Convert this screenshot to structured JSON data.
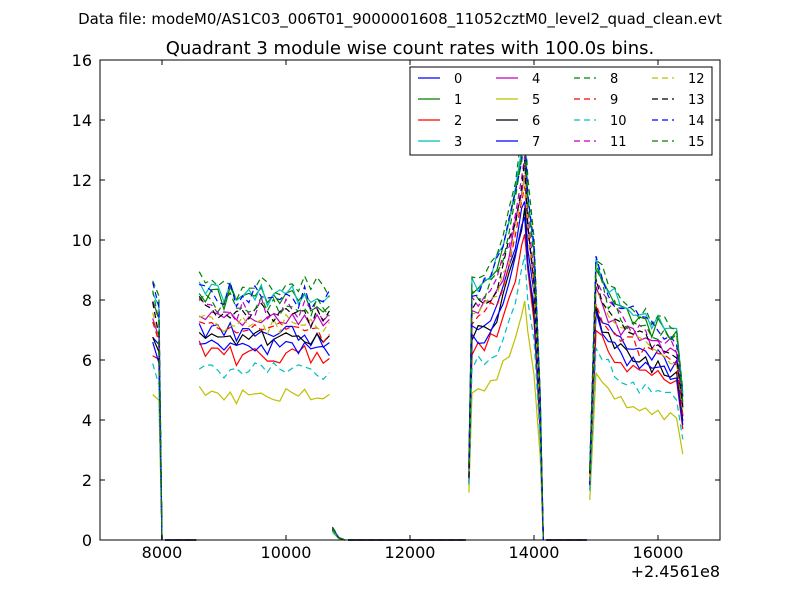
{
  "suptitle": "Data file: modeM0/AS1C03_006T01_9000001608_11052cztM0_level2_quad_clean.evt",
  "chart_data": {
    "type": "line",
    "title": "Quadrant 3 module wise count rates with 100.0s bins.",
    "xlabel": "",
    "ylabel": "",
    "x_offset_label": "+2.4561e8",
    "xlim": [
      7000,
      17000
    ],
    "ylim": [
      0,
      16
    ],
    "xticks": [
      8000,
      10000,
      12000,
      14000,
      16000
    ],
    "yticks": [
      0,
      2,
      4,
      6,
      8,
      10,
      12,
      14,
      16
    ],
    "legend_position": "top-right",
    "segments": [
      {
        "x": [
          7850,
          7950,
          8000
        ],
        "frac": [
          1.0,
          0.92,
          0.0
        ]
      },
      {
        "x": [
          8050,
          8550
        ],
        "frac": [
          0.0,
          0.0
        ]
      },
      {
        "x": [
          8600,
          8700,
          8800,
          8900,
          9000,
          9100,
          9200,
          9300,
          9400,
          9500,
          9600,
          9700,
          9800,
          9900,
          10000,
          10100,
          10200,
          10300,
          10400,
          10500,
          10600,
          10700
        ],
        "frac": [
          1.02,
          1.0,
          0.98,
          0.99,
          0.97,
          1.0,
          0.96,
          0.98,
          0.97,
          0.99,
          1.0,
          0.96,
          0.98,
          0.97,
          0.99,
          0.98,
          0.97,
          0.99,
          0.96,
          0.98,
          0.95,
          0.97
        ]
      },
      {
        "x": [
          10750,
          10850,
          10950
        ],
        "frac": [
          0.05,
          0.01,
          0.0
        ]
      },
      {
        "x": [
          11000,
          12900
        ],
        "frac": [
          0.0,
          0.0
        ]
      },
      {
        "x": [
          12950,
          13000,
          13100,
          13200,
          13300,
          13400,
          13500,
          13600,
          13700,
          13800,
          13850,
          13900,
          14000,
          14100,
          14150
        ],
        "frac": [
          0.3,
          1.0,
          1.02,
          1.03,
          1.06,
          1.1,
          1.18,
          1.28,
          1.4,
          1.55,
          1.65,
          1.4,
          1.15,
          0.6,
          0.0
        ]
      },
      {
        "x": [
          14200,
          14850
        ],
        "frac": [
          0.0,
          0.0
        ]
      },
      {
        "x": [
          14900,
          15000,
          15100,
          15200,
          15300,
          15400,
          15500,
          15600,
          15700,
          15800,
          15900,
          16000,
          16100,
          16200,
          16300,
          16400
        ],
        "frac": [
          0.3,
          1.12,
          1.05,
          1.0,
          0.96,
          0.94,
          0.92,
          0.9,
          0.88,
          0.86,
          0.85,
          0.87,
          0.84,
          0.83,
          0.82,
          0.55
        ]
      }
    ],
    "series": [
      {
        "name": "0",
        "level": 7.0,
        "color": "#0000ff",
        "style": "solid"
      },
      {
        "name": "1",
        "level": 8.2,
        "color": "#008000",
        "style": "solid"
      },
      {
        "name": "2",
        "level": 6.3,
        "color": "#ff0000",
        "style": "solid"
      },
      {
        "name": "3",
        "level": 8.4,
        "color": "#00bfbf",
        "style": "solid"
      },
      {
        "name": "4",
        "level": 7.5,
        "color": "#bf00bf",
        "style": "solid"
      },
      {
        "name": "5",
        "level": 4.9,
        "color": "#bfbf00",
        "style": "solid"
      },
      {
        "name": "6",
        "level": 6.8,
        "color": "#000000",
        "style": "solid"
      },
      {
        "name": "7",
        "level": 6.6,
        "color": "#0000ff",
        "style": "solid"
      },
      {
        "name": "8",
        "level": 8.6,
        "color": "#008000",
        "style": "dashed"
      },
      {
        "name": "9",
        "level": 7.2,
        "color": "#ff0000",
        "style": "dashed"
      },
      {
        "name": "10",
        "level": 5.8,
        "color": "#00bfbf",
        "style": "dashed"
      },
      {
        "name": "11",
        "level": 7.8,
        "color": "#bf00bf",
        "style": "dashed"
      },
      {
        "name": "12",
        "level": 7.4,
        "color": "#bfbf00",
        "style": "dashed"
      },
      {
        "name": "13",
        "level": 7.7,
        "color": "#000000",
        "style": "dashed"
      },
      {
        "name": "14",
        "level": 8.3,
        "color": "#0000ff",
        "style": "dashed"
      },
      {
        "name": "15",
        "level": 8.0,
        "color": "#008000",
        "style": "dashed"
      }
    ]
  }
}
